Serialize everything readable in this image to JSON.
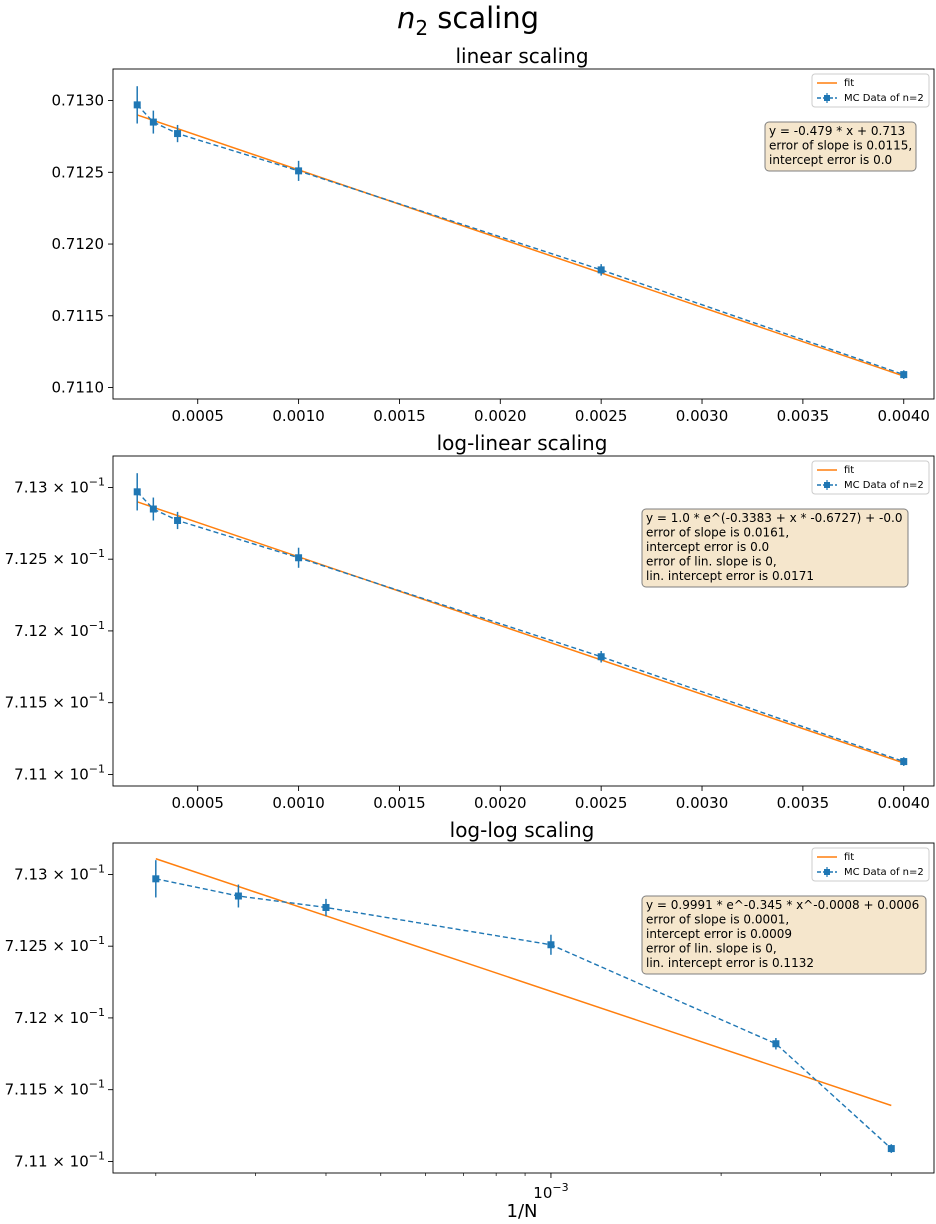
{
  "suptitle": {
    "italic": "n",
    "sub": "2",
    "rest": " scaling"
  },
  "xlabel_bottom": "1/N",
  "legend": {
    "fit": "fit",
    "data": "MC Data of n=2"
  },
  "colors": {
    "data": "#1f77b4",
    "fit": "#ff7f0e",
    "box_fill": "#f5e6cc",
    "box_edge": "#7f7f7f"
  },
  "chart_data": [
    {
      "type": "line",
      "title": "linear scaling",
      "xlabel": "",
      "ylabel": "",
      "xscale": "linear",
      "yscale": "linear",
      "xlim": [
        8e-05,
        0.00415
      ],
      "ylim": [
        0.71092,
        0.71322
      ],
      "xticks": [
        0.0005,
        0.001,
        0.0015,
        0.002,
        0.0025,
        0.003,
        0.0035,
        0.004
      ],
      "xtick_labels": [
        "0.0005",
        "0.0010",
        "0.0015",
        "0.0020",
        "0.0025",
        "0.0030",
        "0.0035",
        "0.0040"
      ],
      "yticks": [
        0.711,
        0.7115,
        0.712,
        0.7125,
        0.713
      ],
      "ytick_labels": [
        "0.7110",
        "0.7115",
        "0.7120",
        "0.7125",
        "0.7130"
      ],
      "legend_position": "upper right",
      "series": [
        {
          "name": "MC Data of n=2",
          "style": "dashed, square markers, error bars",
          "x": [
            0.0002,
            0.00028,
            0.0004,
            0.001,
            0.0025,
            0.004
          ],
          "y": [
            0.71297,
            0.71285,
            0.71277,
            0.71251,
            0.71182,
            0.71109
          ],
          "yerr": [
            0.00013,
            8e-05,
            6e-05,
            7e-05,
            4e-05,
            3e-05
          ]
        },
        {
          "name": "fit",
          "style": "solid line",
          "x": [
            0.0002,
            0.004
          ],
          "y": [
            0.7129,
            0.71108
          ]
        }
      ],
      "annotation": [
        "y = -0.479 * x + 0.713",
        "error of slope is 0.0115,",
        "intercept error is 0.0"
      ]
    },
    {
      "type": "line",
      "title": "log-linear scaling",
      "xlabel": "",
      "ylabel": "",
      "xscale": "linear",
      "yscale": "log",
      "xlim": [
        8e-05,
        0.00415
      ],
      "ylim": [
        0.71092,
        0.71322
      ],
      "xticks": [
        0.0005,
        0.001,
        0.0015,
        0.002,
        0.0025,
        0.003,
        0.0035,
        0.004
      ],
      "xtick_labels": [
        "0.0005",
        "0.0010",
        "0.0015",
        "0.0020",
        "0.0025",
        "0.0030",
        "0.0035",
        "0.0040"
      ],
      "yticks": [
        0.711,
        0.7115,
        0.712,
        0.7125,
        0.713
      ],
      "ytick_labels": [
        {
          "mant": "7.11",
          "times": " × 10",
          "exp": "−1"
        },
        {
          "mant": "7.115",
          "times": " × 10",
          "exp": "−1"
        },
        {
          "mant": "7.12",
          "times": " × 10",
          "exp": "−1"
        },
        {
          "mant": "7.125",
          "times": " × 10",
          "exp": "−1"
        },
        {
          "mant": "7.13",
          "times": " × 10",
          "exp": "−1"
        }
      ],
      "legend_position": "upper right",
      "series": [
        {
          "name": "MC Data of n=2",
          "style": "dashed, square markers, error bars",
          "x": [
            0.0002,
            0.00028,
            0.0004,
            0.001,
            0.0025,
            0.004
          ],
          "y": [
            0.71297,
            0.71285,
            0.71277,
            0.71251,
            0.71182,
            0.71109
          ],
          "yerr": [
            0.00013,
            8e-05,
            6e-05,
            7e-05,
            4e-05,
            3e-05
          ]
        },
        {
          "name": "fit",
          "style": "solid line",
          "x": [
            0.0002,
            0.004
          ],
          "y": [
            0.7129,
            0.71108
          ]
        }
      ],
      "annotation": [
        "y = 1.0 * e^(-0.3383 + x * -0.6727) + -0.0",
        "error of slope is 0.0161,",
        "intercept error is 0.0",
        "error of lin. slope is 0,",
        "lin. intercept error is 0.0171"
      ]
    },
    {
      "type": "line",
      "title": "log-log scaling",
      "xlabel": "1/N",
      "ylabel": "",
      "xscale": "log",
      "yscale": "log",
      "xlim": [
        0.000168,
        0.00476
      ],
      "ylim": [
        0.71092,
        0.71322
      ],
      "xticks": [
        0.001
      ],
      "xtick_labels": [
        {
          "base": "10",
          "exp": "−3"
        }
      ],
      "xminor_ticks": [
        0.0002,
        0.0003,
        0.0004,
        0.0005,
        0.0006,
        0.0007,
        0.0008,
        0.0009,
        0.002,
        0.003,
        0.004
      ],
      "yticks": [
        0.711,
        0.7115,
        0.712,
        0.7125,
        0.713
      ],
      "ytick_labels": [
        {
          "mant": "7.11",
          "times": " × 10",
          "exp": "−1"
        },
        {
          "mant": "7.115",
          "times": " × 10",
          "exp": "−1"
        },
        {
          "mant": "7.12",
          "times": " × 10",
          "exp": "−1"
        },
        {
          "mant": "7.125",
          "times": " × 10",
          "exp": "−1"
        },
        {
          "mant": "7.13",
          "times": " × 10",
          "exp": "−1"
        }
      ],
      "legend_position": "upper right",
      "series": [
        {
          "name": "MC Data of n=2",
          "style": "dashed, square markers, error bars",
          "x": [
            0.0002,
            0.00028,
            0.0004,
            0.001,
            0.0025,
            0.004
          ],
          "y": [
            0.71297,
            0.71285,
            0.71277,
            0.71251,
            0.71182,
            0.71109
          ],
          "yerr": [
            0.00013,
            8e-05,
            6e-05,
            7e-05,
            4e-05,
            3e-05
          ]
        },
        {
          "name": "fit",
          "style": "solid line",
          "x": [
            0.0002,
            0.004
          ],
          "y": [
            0.71311,
            0.71139
          ]
        }
      ],
      "annotation": [
        "y = 0.9991 * e^-0.345 * x^-0.0008 + 0.0006",
        "error of slope is 0.0001,",
        "intercept error is 0.0009",
        "error of lin. slope is 0,",
        "lin. intercept error is 0.1132"
      ]
    }
  ]
}
